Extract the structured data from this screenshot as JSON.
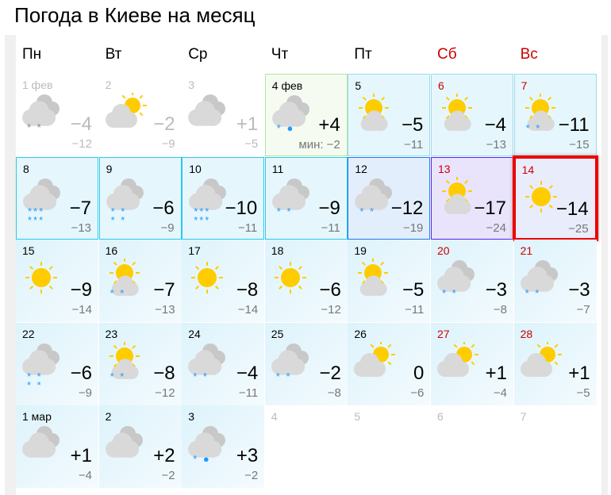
{
  "title": "Погода в Киеве на месяц",
  "weekdays": [
    {
      "label": "Пн",
      "weekend": false
    },
    {
      "label": "Вт",
      "weekend": false
    },
    {
      "label": "Ср",
      "weekend": false
    },
    {
      "label": "Чт",
      "weekend": false
    },
    {
      "label": "Пт",
      "weekend": false
    },
    {
      "label": "Сб",
      "weekend": true
    },
    {
      "label": "Вс",
      "weekend": true
    }
  ],
  "colors": {
    "weekend": "#cc0000",
    "selected_border": "#ee0000",
    "sun": "#ffcc00",
    "cloud": "#d9d9d9",
    "snow": "#2299ff"
  },
  "days": [
    {
      "date": "1 фев",
      "icon": "cloudy",
      "precip": "snow2",
      "max": "−4",
      "min": "−12",
      "style": "past"
    },
    {
      "date": "2",
      "icon": "partly-right",
      "precip": "",
      "max": "−2",
      "min": "−9",
      "style": "past"
    },
    {
      "date": "3",
      "icon": "cloudy",
      "precip": "",
      "max": "+1",
      "min": "−5",
      "style": "past"
    },
    {
      "date": "4 фев",
      "icon": "cloudy",
      "precip": "snow-rain",
      "max": "+4",
      "min": "мин: −2",
      "style": "today"
    },
    {
      "date": "5",
      "icon": "sun-top",
      "precip": "",
      "max": "−5",
      "min": "−11",
      "style": "cy"
    },
    {
      "date": "6",
      "icon": "sun-top",
      "precip": "",
      "max": "−4",
      "min": "−13",
      "style": "cy",
      "weekend": true
    },
    {
      "date": "7",
      "icon": "sun-top",
      "precip": "snow2",
      "max": "−11",
      "min": "−15",
      "style": "cy",
      "weekend": true
    },
    {
      "date": "8",
      "icon": "cloudy",
      "precip": "snow6",
      "max": "−7",
      "min": "−13",
      "style": "cyb"
    },
    {
      "date": "9",
      "icon": "cloudy",
      "precip": "snow4",
      "max": "−6",
      "min": "−9",
      "style": "cyb"
    },
    {
      "date": "10",
      "icon": "cloudy",
      "precip": "snow6",
      "max": "−10",
      "min": "−11",
      "style": "cyb"
    },
    {
      "date": "11",
      "icon": "cloudy",
      "precip": "snow2",
      "max": "−9",
      "min": "−11",
      "style": "cyb"
    },
    {
      "date": "12",
      "icon": "cloudy",
      "precip": "snow2",
      "max": "−12",
      "min": "−19",
      "style": "bl"
    },
    {
      "date": "13",
      "icon": "sun-top",
      "precip": "",
      "max": "−17",
      "min": "−24",
      "style": "pu",
      "weekend": true
    },
    {
      "date": "14",
      "icon": "sunny",
      "precip": "",
      "max": "−14",
      "min": "−25",
      "style": "sel",
      "weekend": true
    },
    {
      "date": "15",
      "icon": "sunny",
      "precip": "",
      "max": "−9",
      "min": "−14",
      "style": "lt"
    },
    {
      "date": "16",
      "icon": "sun-top",
      "precip": "snow2",
      "max": "−7",
      "min": "−13",
      "style": "lt"
    },
    {
      "date": "17",
      "icon": "sunny",
      "precip": "",
      "max": "−8",
      "min": "−14",
      "style": "lt"
    },
    {
      "date": "18",
      "icon": "sunny",
      "precip": "",
      "max": "−6",
      "min": "−12",
      "style": "lt"
    },
    {
      "date": "19",
      "icon": "sun-top",
      "precip": "",
      "max": "−5",
      "min": "−11",
      "style": "lt"
    },
    {
      "date": "20",
      "icon": "cloudy",
      "precip": "snow2",
      "max": "−3",
      "min": "−8",
      "style": "lt",
      "weekend": true
    },
    {
      "date": "21",
      "icon": "cloudy",
      "precip": "snow2",
      "max": "−3",
      "min": "−7",
      "style": "lt",
      "weekend": true
    },
    {
      "date": "22",
      "icon": "cloudy",
      "precip": "snow4",
      "max": "−6",
      "min": "−9",
      "style": "lt"
    },
    {
      "date": "23",
      "icon": "sun-top",
      "precip": "snow2",
      "max": "−8",
      "min": "−12",
      "style": "lt"
    },
    {
      "date": "24",
      "icon": "cloudy",
      "precip": "snow2",
      "max": "−4",
      "min": "−11",
      "style": "lt"
    },
    {
      "date": "25",
      "icon": "cloudy",
      "precip": "snow2",
      "max": "−2",
      "min": "−8",
      "style": "lt"
    },
    {
      "date": "26",
      "icon": "partly-right",
      "precip": "",
      "max": "0",
      "min": "−6",
      "style": "lt"
    },
    {
      "date": "27",
      "icon": "partly-right",
      "precip": "",
      "max": "+1",
      "min": "−4",
      "style": "lt",
      "weekend": true
    },
    {
      "date": "28",
      "icon": "partly-right",
      "precip": "",
      "max": "+1",
      "min": "−5",
      "style": "lt",
      "weekend": true
    },
    {
      "date": "1 мар",
      "icon": "cloudy",
      "precip": "",
      "max": "+1",
      "min": "−4",
      "style": "lt"
    },
    {
      "date": "2",
      "icon": "cloudy",
      "precip": "",
      "max": "+2",
      "min": "−2",
      "style": "lt"
    },
    {
      "date": "3",
      "icon": "cloudy",
      "precip": "snow-rain",
      "max": "+3",
      "min": "−2",
      "style": "lt"
    },
    {
      "date": "4",
      "style": "empty"
    },
    {
      "date": "5",
      "style": "empty"
    },
    {
      "date": "6",
      "style": "empty"
    },
    {
      "date": "7",
      "style": "empty"
    }
  ]
}
